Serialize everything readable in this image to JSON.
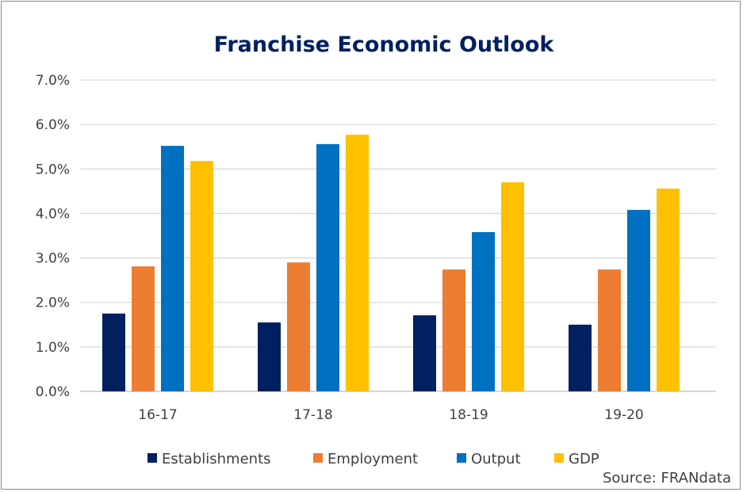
{
  "chart_data": {
    "type": "bar",
    "title": "Franchise Economic Outlook",
    "categories": [
      "16-17",
      "17-18",
      "18-19",
      "19-20"
    ],
    "series": [
      {
        "name": "Establishments",
        "color": "#002060",
        "values": [
          1.75,
          1.55,
          1.71,
          1.5
        ]
      },
      {
        "name": "Employment",
        "color": "#ED7D31",
        "values": [
          2.81,
          2.9,
          2.74,
          2.74
        ]
      },
      {
        "name": "Output",
        "color": "#0070C0",
        "values": [
          5.52,
          5.56,
          3.58,
          4.08
        ]
      },
      {
        "name": "GDP",
        "color": "#FFC000",
        "values": [
          5.18,
          5.77,
          4.7,
          4.56
        ]
      }
    ],
    "ylim": [
      0,
      7
    ],
    "yticks": [
      "0.0%",
      "1.0%",
      "2.0%",
      "3.0%",
      "4.0%",
      "5.0%",
      "6.0%",
      "7.0%"
    ],
    "xlabel": "",
    "ylabel": "",
    "grid": true,
    "legend_position": "bottom",
    "source": "Source: FRANdata"
  }
}
